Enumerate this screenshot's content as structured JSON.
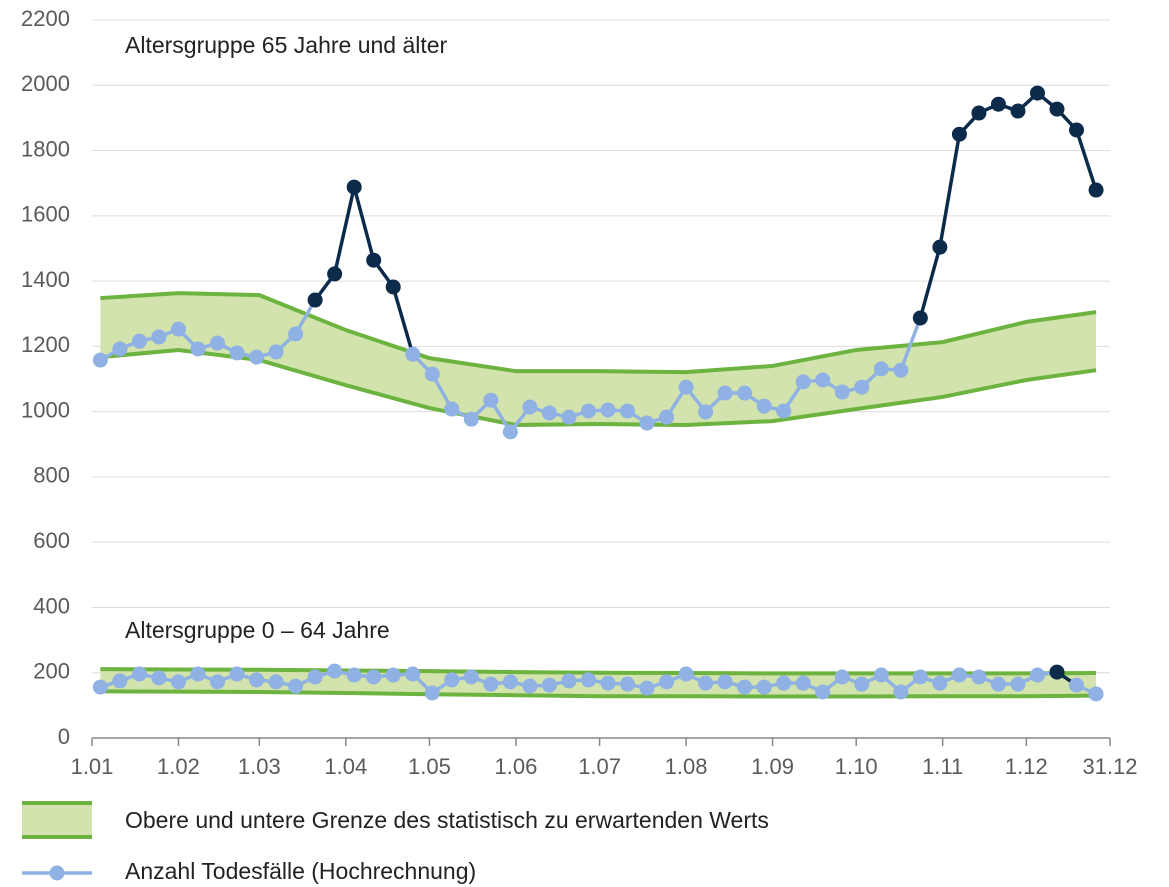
{
  "chart_data": {
    "type": "line",
    "xlim": [
      0,
      365
    ],
    "xticks": [
      {
        "value": 0,
        "label": "1.01"
      },
      {
        "value": 31,
        "label": "1.02"
      },
      {
        "value": 60,
        "label": "1.03"
      },
      {
        "value": 91,
        "label": "1.04"
      },
      {
        "value": 121,
        "label": "1.05"
      },
      {
        "value": 152,
        "label": "1.06"
      },
      {
        "value": 182,
        "label": "1.07"
      },
      {
        "value": 213,
        "label": "1.08"
      },
      {
        "value": 244,
        "label": "1.09"
      },
      {
        "value": 274,
        "label": "1.10"
      },
      {
        "value": 305,
        "label": "1.11"
      },
      {
        "value": 335,
        "label": "1.12"
      },
      {
        "value": 365,
        "label": "31.12"
      }
    ],
    "ylim": [
      0,
      2200
    ],
    "yticks": [
      0,
      200,
      400,
      600,
      800,
      1000,
      1200,
      1400,
      1600,
      1800,
      2000,
      2200
    ],
    "grid": true,
    "band_name": "Obere und untere Grenze des statistisch zu erwartenden Werts",
    "series_name": "Anzahl Todesfälle (Hochrechnung)",
    "band_fill": "#d2e3ad",
    "band_line": "#6cb33f",
    "line_color": "#8fb1e3",
    "excess_color": "#0c2b4b",
    "x": [
      3,
      10,
      17,
      24,
      31,
      38,
      45,
      52,
      59,
      66,
      73,
      80,
      87,
      94,
      101,
      108,
      115,
      122,
      129,
      136,
      143,
      150,
      157,
      164,
      171,
      178,
      185,
      192,
      199,
      206,
      213,
      220,
      227,
      234,
      241,
      248,
      255,
      262,
      269,
      276,
      283,
      290,
      297,
      304,
      311,
      318,
      325,
      332,
      339,
      346,
      353,
      360
    ],
    "band_x": [
      3,
      31,
      60,
      91,
      121,
      152,
      182,
      213,
      244,
      274,
      305,
      335,
      360
    ],
    "groups": [
      {
        "label": "Altersgruppe 65 Jahre und älter",
        "upper": [
          1348,
          1363,
          1357,
          1250,
          1164,
          1124,
          1124,
          1121,
          1140,
          1189,
          1213,
          1275,
          1305
        ],
        "lower": [
          1167,
          1189,
          1158,
          1081,
          1011,
          959,
          962,
          959,
          971,
          1008,
          1045,
          1097,
          1127
        ],
        "values": [
          1158,
          1192,
          1216,
          1229,
          1253,
          1192,
          1210,
          1180,
          1167,
          1183,
          1238,
          1342,
          1422,
          1688,
          1464,
          1382,
          1176,
          1115,
          1008,
          977,
          1035,
          938,
          1014,
          996,
          983,
          1002,
          1005,
          1002,
          965,
          983,
          1075,
          999,
          1057,
          1057,
          1017,
          1002,
          1091,
          1097,
          1060,
          1075,
          1131,
          1127,
          1287,
          1504,
          1850,
          1915,
          1942,
          1921,
          1976,
          1927,
          1863,
          1679
        ]
      },
      {
        "label": "Altersgruppe 0 – 64 Jahre",
        "upper": [
          211,
          210,
          209,
          207,
          205,
          202,
          200,
          199,
          198,
          198,
          198,
          198,
          199
        ],
        "lower": [
          143,
          142,
          141,
          138,
          134,
          131,
          128,
          128,
          127,
          127,
          128,
          128,
          130
        ],
        "values": [
          156,
          175,
          196,
          184,
          172,
          196,
          172,
          196,
          178,
          172,
          159,
          187,
          205,
          193,
          187,
          193,
          196,
          138,
          178,
          187,
          165,
          172,
          159,
          162,
          175,
          178,
          168,
          165,
          153,
          172,
          196,
          168,
          172,
          156,
          156,
          168,
          168,
          141,
          187,
          165,
          193,
          141,
          187,
          168,
          193,
          187,
          165,
          165,
          193,
          202,
          162,
          135
        ]
      }
    ]
  }
}
